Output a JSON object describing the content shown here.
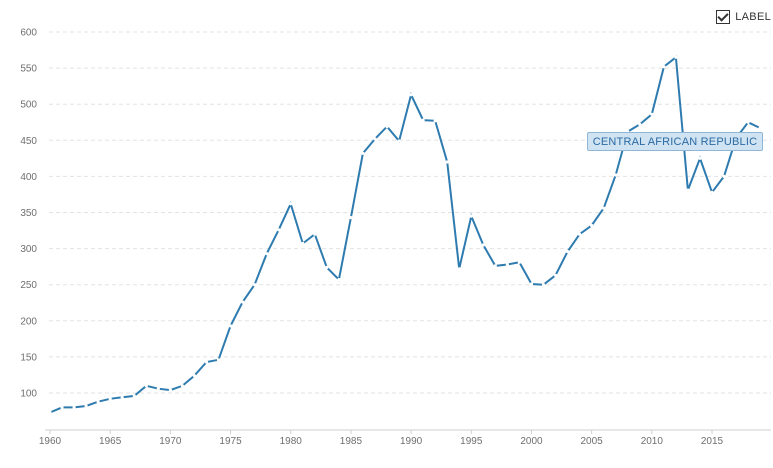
{
  "legend": {
    "toggle_label": "LABEL"
  },
  "chart_data": {
    "type": "line",
    "title": "",
    "xlabel": "",
    "ylabel": "",
    "xlim": [
      1960,
      2020
    ],
    "ylim": [
      50,
      600
    ],
    "grid": true,
    "x_ticks": [
      1960,
      1965,
      1970,
      1975,
      1980,
      1985,
      1990,
      1995,
      2000,
      2005,
      2010,
      2015
    ],
    "y_ticks": [
      100,
      150,
      200,
      250,
      300,
      350,
      400,
      450,
      500,
      550,
      600
    ],
    "series": [
      {
        "name": "CENTRAL AFRICAN REPUBLIC",
        "color": "#2e7bb0",
        "x": [
          1960,
          1961,
          1962,
          1963,
          1964,
          1965,
          1966,
          1967,
          1968,
          1969,
          1970,
          1971,
          1972,
          1973,
          1974,
          1975,
          1976,
          1977,
          1978,
          1979,
          1980,
          1981,
          1982,
          1983,
          1984,
          1985,
          1986,
          1987,
          1988,
          1989,
          1990,
          1991,
          1992,
          1993,
          1994,
          1995,
          1996,
          1997,
          1998,
          1999,
          2000,
          2001,
          2002,
          2003,
          2004,
          2005,
          2006,
          2007,
          2008,
          2009,
          2010,
          2011,
          2012,
          2013,
          2014,
          2015,
          2016,
          2017,
          2018,
          2019
        ],
        "values": [
          73,
          80,
          80,
          82,
          88,
          92,
          94,
          96,
          110,
          106,
          104,
          110,
          124,
          143,
          146,
          193,
          226,
          250,
          293,
          326,
          362,
          307,
          320,
          274,
          257,
          343,
          432,
          452,
          469,
          449,
          513,
          478,
          477,
          420,
          272,
          345,
          305,
          276,
          278,
          281,
          251,
          250,
          263,
          296,
          320,
          332,
          356,
          402,
          462,
          472,
          486,
          552,
          565,
          381,
          425,
          378,
          400,
          453,
          475,
          467
        ]
      }
    ]
  }
}
